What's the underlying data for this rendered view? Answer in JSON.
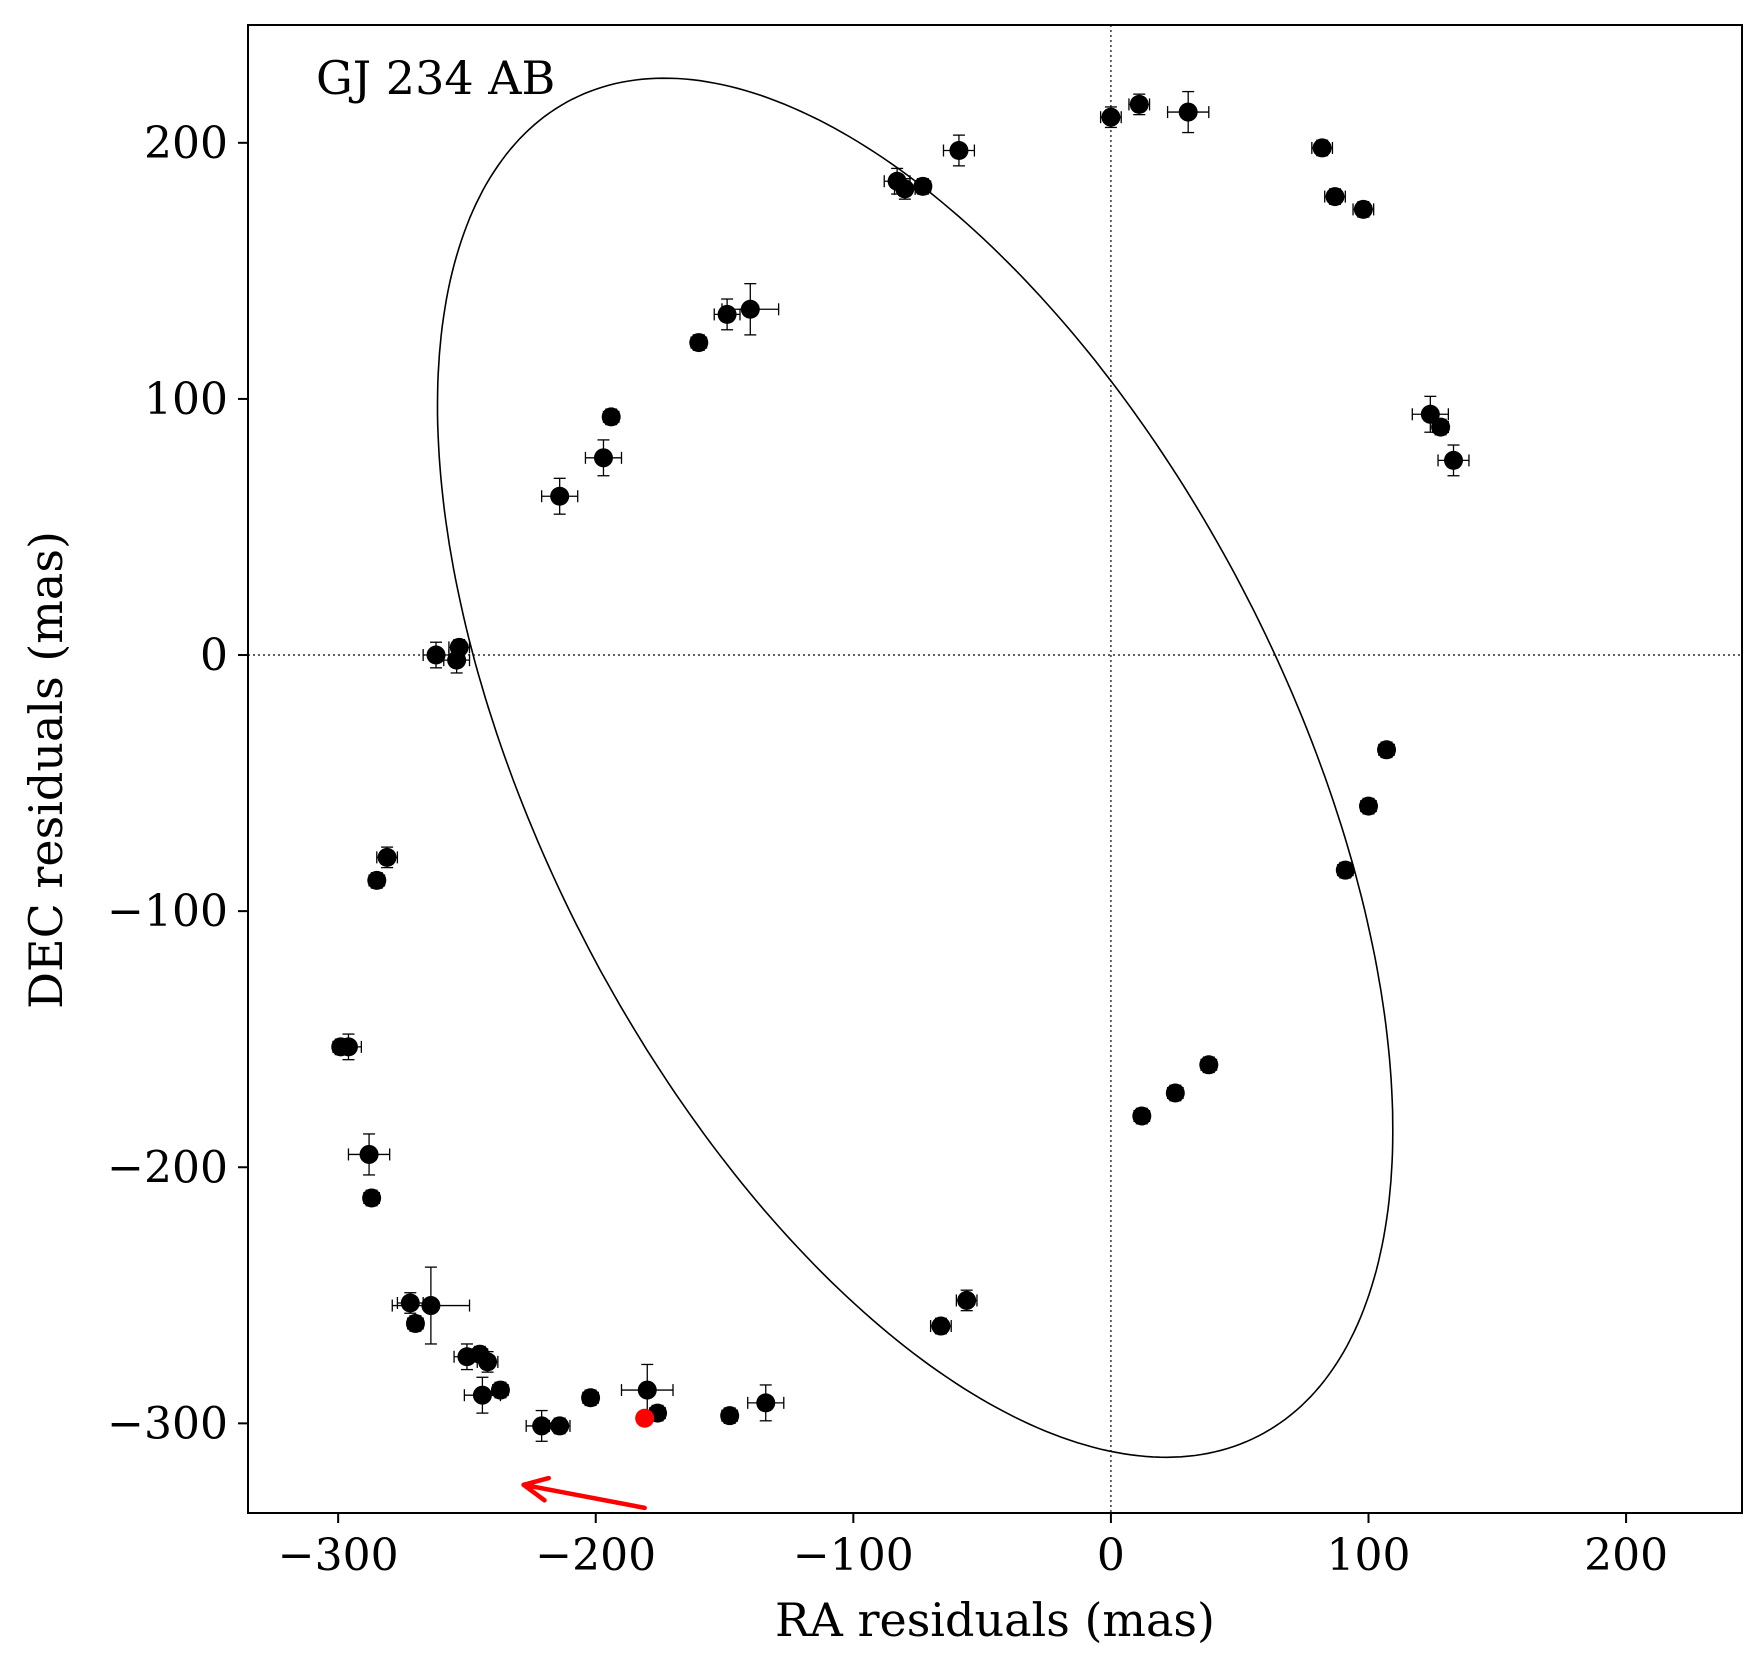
{
  "chart_data": {
    "type": "scatter",
    "annotation": "GJ 234 AB",
    "xlabel": "RA residuals  (mas)",
    "ylabel": "DEC residuals  (mas)",
    "xlim": [
      -335,
      245
    ],
    "ylim": [
      -335,
      246
    ],
    "xticks": [
      -300,
      -200,
      -100,
      0,
      100,
      200
    ],
    "yticks": [
      -300,
      -200,
      -100,
      0,
      100,
      200
    ],
    "xtick_labels": [
      "−300",
      "−200",
      "−100",
      "0",
      "100",
      "200"
    ],
    "ytick_labels": [
      "−300",
      "−200",
      "−100",
      "0",
      "100",
      "200"
    ],
    "grid": false,
    "reference_lines": {
      "x": 0,
      "y": 0,
      "style": "dotted"
    },
    "series": [
      {
        "points": [
          {
            "x": 0,
            "y": 210,
            "xerr": 4,
            "yerr": 4
          },
          {
            "x": 11,
            "y": 215,
            "xerr": 4,
            "yerr": 4
          },
          {
            "x": 30,
            "y": 212,
            "xerr": 8,
            "yerr": 8
          },
          {
            "x": 82,
            "y": 198,
            "xerr": 4,
            "yerr": 3
          },
          {
            "x": 87,
            "y": 179,
            "xerr": 4,
            "yerr": 3
          },
          {
            "x": 98,
            "y": 174,
            "xerr": 4,
            "yerr": 3
          },
          {
            "x": 124,
            "y": 94,
            "xerr": 7,
            "yerr": 7
          },
          {
            "x": 128,
            "y": 89,
            "xerr": 3,
            "yerr": 3
          },
          {
            "x": 133,
            "y": 76,
            "xerr": 6,
            "yerr": 6
          },
          {
            "x": 107,
            "y": -37,
            "xerr": 3,
            "yerr": 3
          },
          {
            "x": 100,
            "y": -59,
            "xerr": 3,
            "yerr": 3
          },
          {
            "x": 91,
            "y": -84,
            "xerr": 3,
            "yerr": 3
          },
          {
            "x": 38,
            "y": -160,
            "xerr": 3,
            "yerr": 3
          },
          {
            "x": 25,
            "y": -171,
            "xerr": 3,
            "yerr": 3
          },
          {
            "x": 12,
            "y": -180,
            "xerr": 3,
            "yerr": 3
          },
          {
            "x": -56,
            "y": -252,
            "xerr": 4,
            "yerr": 4
          },
          {
            "x": -66,
            "y": -262,
            "xerr": 4,
            "yerr": 3
          },
          {
            "x": -134,
            "y": -292,
            "xerr": 7,
            "yerr": 7
          },
          {
            "x": -148,
            "y": -297,
            "xerr": 3,
            "yerr": 3
          },
          {
            "x": -176,
            "y": -296,
            "xerr": 3,
            "yerr": 3
          },
          {
            "x": -180,
            "y": -287,
            "xerr": 10,
            "yerr": 10
          },
          {
            "x": -202,
            "y": -290,
            "xerr": 3,
            "yerr": 3
          },
          {
            "x": -214,
            "y": -301,
            "xerr": 4,
            "yerr": 3
          },
          {
            "x": -221,
            "y": -301,
            "xerr": 6,
            "yerr": 6
          },
          {
            "x": -237,
            "y": -287,
            "xerr": 3,
            "yerr": 3
          },
          {
            "x": -242,
            "y": -276,
            "xerr": 4,
            "yerr": 4
          },
          {
            "x": -244,
            "y": -289,
            "xerr": 7,
            "yerr": 7
          },
          {
            "x": -245,
            "y": -273,
            "xerr": 3,
            "yerr": 3
          },
          {
            "x": -250,
            "y": -274,
            "xerr": 5,
            "yerr": 5
          },
          {
            "x": -264,
            "y": -254,
            "xerr": 15,
            "yerr": 15
          },
          {
            "x": -270,
            "y": -261,
            "xerr": 3,
            "yerr": 3
          },
          {
            "x": -272,
            "y": -253,
            "xerr": 5,
            "yerr": 4
          },
          {
            "x": -287,
            "y": -212,
            "xerr": 3,
            "yerr": 3
          },
          {
            "x": -288,
            "y": -195,
            "xerr": 8,
            "yerr": 8
          },
          {
            "x": -299,
            "y": -153,
            "xerr": 3,
            "yerr": 3
          },
          {
            "x": -296,
            "y": -153,
            "xerr": 5,
            "yerr": 5
          },
          {
            "x": -285,
            "y": -88,
            "xerr": 3,
            "yerr": 3
          },
          {
            "x": -281,
            "y": -79,
            "xerr": 4,
            "yerr": 4
          },
          {
            "x": -262,
            "y": 0,
            "xerr": 5,
            "yerr": 5
          },
          {
            "x": -253,
            "y": 3,
            "xerr": 4,
            "yerr": 3
          },
          {
            "x": -254,
            "y": -2,
            "xerr": 5,
            "yerr": 5
          },
          {
            "x": -214,
            "y": 62,
            "xerr": 7,
            "yerr": 7
          },
          {
            "x": -197,
            "y": 77,
            "xerr": 7,
            "yerr": 7
          },
          {
            "x": -194,
            "y": 93,
            "xerr": 3,
            "yerr": 3
          },
          {
            "x": -160,
            "y": 122,
            "xerr": 3,
            "yerr": 3
          },
          {
            "x": -149,
            "y": 133,
            "xerr": 5,
            "yerr": 6
          },
          {
            "x": -140,
            "y": 135,
            "xerr": 11,
            "yerr": 10
          },
          {
            "x": -83,
            "y": 185,
            "xerr": 5,
            "yerr": 5
          },
          {
            "x": -80,
            "y": 182,
            "xerr": 4,
            "yerr": 4
          },
          {
            "x": -73,
            "y": 183,
            "xerr": 3,
            "yerr": 3
          },
          {
            "x": -59,
            "y": 197,
            "xerr": 6,
            "yerr": 6
          }
        ]
      }
    ],
    "highlight_point": {
      "x": -181,
      "y": -298
    },
    "orbit_fit": {
      "center": [
        -76,
        -44
      ],
      "semi_major": 293,
      "semi_minor": 145,
      "angle_deg": 117
    },
    "arrow": {
      "from": [
        -181,
        -333
      ],
      "to": [
        -228,
        -324
      ]
    },
    "colors": {
      "points": "#000000",
      "highlight": "#ff0000",
      "arrow": "#ff0000",
      "orbit": "#000000"
    }
  }
}
